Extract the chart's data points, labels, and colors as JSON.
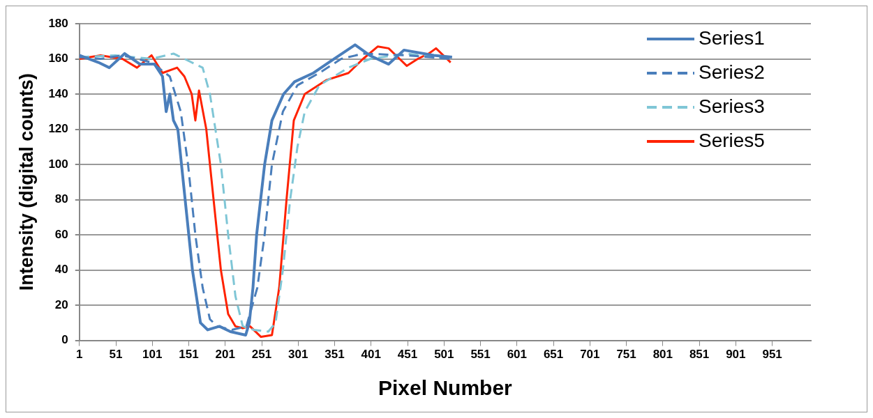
{
  "chart_data": {
    "type": "line",
    "xlabel": "Pixel Number",
    "ylabel": "Intensity (digital counts)",
    "xlim": [
      1,
      1004
    ],
    "xticks": [
      1,
      51,
      101,
      151,
      201,
      251,
      301,
      351,
      401,
      451,
      501,
      551,
      601,
      651,
      701,
      751,
      801,
      851,
      901,
      951
    ],
    "ylim": [
      0,
      180
    ],
    "yticks": [
      0,
      20,
      40,
      60,
      80,
      100,
      120,
      140,
      160,
      180
    ],
    "grid": "y",
    "legend": "top right",
    "marker": "none",
    "series": [
      {
        "name": "Series1",
        "color": "#4a7ebb",
        "line_style": "solid",
        "x": [
          1,
          27,
          42,
          63,
          84,
          104,
          115,
          120,
          125,
          130,
          136,
          146,
          156,
          167,
          177,
          193,
          208,
          229,
          234,
          239,
          244,
          255,
          265,
          281,
          296,
          322,
          343,
          379,
          399,
          425,
          446,
          487,
          512
        ],
        "values": [
          162,
          158,
          155,
          163,
          157,
          157,
          150,
          130,
          140,
          125,
          120,
          80,
          40,
          10,
          6,
          8,
          5,
          3,
          10,
          30,
          60,
          100,
          125,
          140,
          147,
          152,
          158,
          168,
          162,
          157,
          165,
          162,
          161
        ]
      },
      {
        "name": "Series2",
        "color": "#4a7ebb",
        "line_style": "dashed",
        "x": [
          1,
          30,
          60,
          100,
          125,
          140,
          150,
          160,
          170,
          180,
          190,
          210,
          230,
          245,
          255,
          265,
          280,
          300,
          330,
          360,
          390,
          450,
          510
        ],
        "values": [
          161,
          160,
          162,
          158,
          150,
          130,
          100,
          60,
          30,
          12,
          8,
          6,
          8,
          30,
          60,
          100,
          130,
          145,
          152,
          160,
          163,
          162,
          160
        ]
      },
      {
        "name": "Series3",
        "color": "#7fc6d6",
        "line_style": "dashed",
        "x": [
          1,
          50,
          100,
          130,
          170,
          180,
          195,
          205,
          215,
          225,
          240,
          260,
          270,
          280,
          290,
          300,
          310,
          330,
          370,
          400,
          450,
          510
        ],
        "values": [
          161,
          162,
          160,
          163,
          155,
          140,
          100,
          60,
          25,
          8,
          6,
          5,
          10,
          40,
          80,
          110,
          130,
          145,
          155,
          160,
          163,
          160
        ]
      },
      {
        "name": "Series5",
        "color": "#ff2200",
        "line_style": "solid",
        "x": [
          1,
          30,
          60,
          80,
          100,
          115,
          135,
          145,
          155,
          160,
          165,
          175,
          185,
          195,
          205,
          215,
          225,
          235,
          250,
          265,
          275,
          285,
          295,
          310,
          340,
          370,
          390,
          410,
          425,
          440,
          450,
          465,
          480,
          490,
          505,
          510
        ],
        "values": [
          160,
          162,
          160,
          155,
          162,
          152,
          155,
          150,
          140,
          125,
          142,
          120,
          80,
          40,
          15,
          8,
          7,
          8,
          2,
          3,
          30,
          80,
          125,
          140,
          148,
          152,
          160,
          167,
          166,
          160,
          156,
          160,
          163,
          166,
          160,
          158
        ]
      }
    ]
  }
}
